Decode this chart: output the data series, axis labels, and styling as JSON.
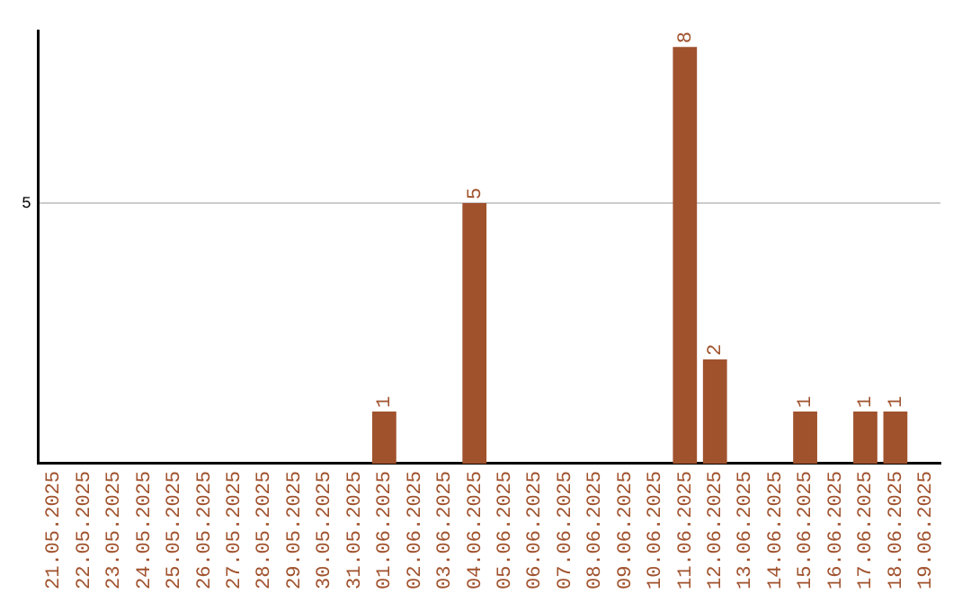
{
  "chart_data": {
    "type": "bar",
    "categories": [
      "21.05.2025",
      "22.05.2025",
      "23.05.2025",
      "24.05.2025",
      "25.05.2025",
      "26.05.2025",
      "27.05.2025",
      "28.05.2025",
      "29.05.2025",
      "30.05.2025",
      "31.05.2025",
      "01.06.2025",
      "02.06.2025",
      "03.06.2025",
      "04.06.2025",
      "05.06.2025",
      "06.06.2025",
      "07.06.2025",
      "08.06.2025",
      "09.06.2025",
      "10.06.2025",
      "11.06.2025",
      "12.06.2025",
      "13.06.2025",
      "14.06.2025",
      "15.06.2025",
      "16.06.2025",
      "17.06.2025",
      "18.06.2025",
      "19.06.2025"
    ],
    "values": [
      0,
      0,
      0,
      0,
      0,
      0,
      0,
      0,
      0,
      0,
      0,
      1,
      0,
      0,
      5,
      0,
      0,
      0,
      0,
      0,
      0,
      8,
      2,
      0,
      0,
      1,
      0,
      1,
      1,
      0
    ],
    "value_labels": [
      null,
      null,
      null,
      null,
      null,
      null,
      null,
      null,
      null,
      null,
      null,
      "1",
      null,
      null,
      "5",
      null,
      null,
      null,
      null,
      null,
      null,
      "8",
      "2",
      null,
      null,
      "1",
      null,
      "1",
      "1",
      null
    ],
    "color": "#a0522d",
    "ylim": [
      0,
      8.3
    ],
    "yticks": [
      5
    ],
    "grid": "y",
    "legend": false
  }
}
